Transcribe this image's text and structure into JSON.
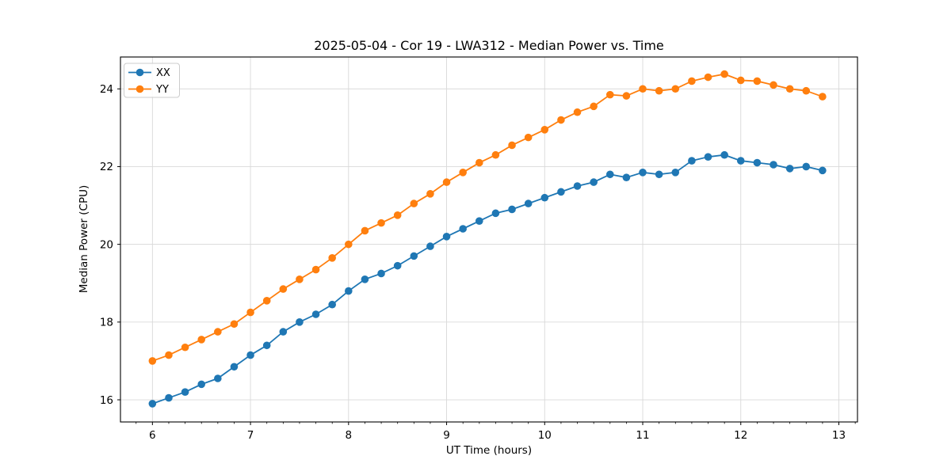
{
  "title": "2025-05-04 - Cor 19 - LWA312 - Median Power vs. Time",
  "chart_data": {
    "type": "line",
    "title": "2025-05-04 - Cor 19 - LWA312 - Median Power vs. Time",
    "xlabel": "UT Time (hours)",
    "ylabel": "Median Power (CPU)",
    "xlim": [
      5.674,
      13.19
    ],
    "ylim": [
      15.43,
      24.82
    ],
    "x_ticks": [
      6,
      7,
      8,
      9,
      10,
      11,
      12,
      13
    ],
    "y_ticks": [
      16,
      18,
      20,
      22,
      24
    ],
    "x_minor_tick_step": 0.16667,
    "grid": true,
    "legend_position": "upper-left",
    "marker": "o",
    "x": [
      6.0,
      6.1667,
      6.3333,
      6.5,
      6.6667,
      6.8333,
      7.0,
      7.1667,
      7.3333,
      7.5,
      7.6667,
      7.8333,
      8.0,
      8.1667,
      8.3333,
      8.5,
      8.6667,
      8.8333,
      9.0,
      9.1667,
      9.3333,
      9.5,
      9.6667,
      9.8333,
      10.0,
      10.1667,
      10.3333,
      10.5,
      10.6667,
      10.8333,
      11.0,
      11.1667,
      11.3333,
      11.5,
      11.6667,
      11.8333,
      12.0,
      12.1667,
      12.3333,
      12.5,
      12.6667,
      12.8333
    ],
    "series": [
      {
        "name": "XX",
        "color": "#1f77b4",
        "values": [
          15.9,
          16.05,
          16.2,
          16.4,
          16.55,
          16.85,
          17.15,
          17.4,
          17.75,
          18.0,
          18.2,
          18.45,
          18.8,
          19.1,
          19.25,
          19.45,
          19.7,
          19.95,
          20.2,
          20.4,
          20.6,
          20.8,
          20.9,
          21.05,
          21.2,
          21.35,
          21.5,
          21.6,
          21.8,
          21.72,
          21.85,
          21.8,
          21.85,
          22.15,
          22.25,
          22.3,
          22.15,
          22.1,
          22.05,
          21.95,
          22.0,
          21.9
        ]
      },
      {
        "name": "YY",
        "color": "#ff7f0e",
        "values": [
          17.0,
          17.15,
          17.35,
          17.55,
          17.75,
          17.95,
          18.25,
          18.55,
          18.85,
          19.1,
          19.35,
          19.65,
          20.0,
          20.35,
          20.55,
          20.75,
          21.05,
          21.3,
          21.6,
          21.85,
          22.1,
          22.3,
          22.55,
          22.75,
          22.95,
          23.2,
          23.4,
          23.55,
          23.85,
          23.82,
          24.0,
          23.95,
          24.0,
          24.2,
          24.3,
          24.38,
          24.22,
          24.2,
          24.1,
          24.0,
          23.95,
          23.8
        ]
      }
    ],
    "style": {
      "grid_color": "#d9d9d9",
      "spine_color": "#000000",
      "background": "#ffffff",
      "legend_border": "#cccccc"
    }
  }
}
